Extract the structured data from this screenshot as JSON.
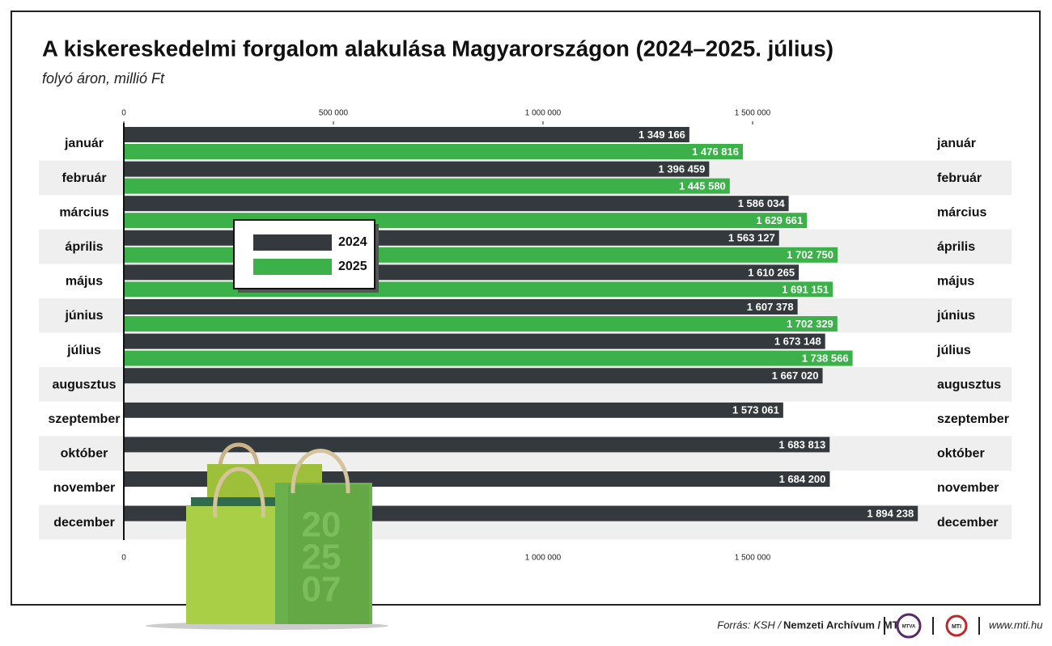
{
  "chart_data": {
    "type": "bar",
    "orientation": "horizontal",
    "title": "A kiskereskedelmi forgalom alakulása Magyarországon (2024–2025. július)",
    "subtitle": "folyó áron, millió Ft",
    "categories": [
      "január",
      "február",
      "március",
      "április",
      "május",
      "június",
      "július",
      "augusztus",
      "szeptember",
      "október",
      "november",
      "december"
    ],
    "series": [
      {
        "name": "2024",
        "color": "#33393c",
        "values": [
          1349166,
          1396459,
          1586034,
          1563127,
          1610265,
          1607378,
          1673148,
          1667020,
          1573061,
          1683813,
          1684200,
          1894238
        ],
        "value_labels": [
          "1 349 166",
          "1 396 459",
          "1 586 034",
          "1 563 127",
          "1 610 265",
          "1 607 378",
          "1 673 148",
          "1 667 020",
          "1 573 061",
          "1 683 813",
          "1 684 200",
          "1 894 238"
        ]
      },
      {
        "name": "2025",
        "color": "#3cb14a",
        "values": [
          1476816,
          1445580,
          1629661,
          1702750,
          1691151,
          1702329,
          1738566,
          null,
          null,
          null,
          null,
          null
        ],
        "value_labels": [
          "1 476 816",
          "1 445 580",
          "1 629 661",
          "1 702 750",
          "1 691 151",
          "1 702 329",
          "1 738 566",
          null,
          null,
          null,
          null,
          null
        ]
      }
    ],
    "xlim": [
      0,
      2000000
    ],
    "xticks": [
      0,
      {
        "value": 500000,
        "label": "500 000"
      },
      {
        "value": 1000000,
        "label": "1 000 000"
      },
      {
        "value": 1500000,
        "label": "1 500 000"
      }
    ],
    "source": "Forrás: KSH /",
    "source_credit": "Nemzeti Archívum / MTI",
    "logos": [
      "MTVA",
      "MTI"
    ],
    "website": "www.mti.hu",
    "bag_text": [
      "20",
      "25",
      "07"
    ]
  }
}
